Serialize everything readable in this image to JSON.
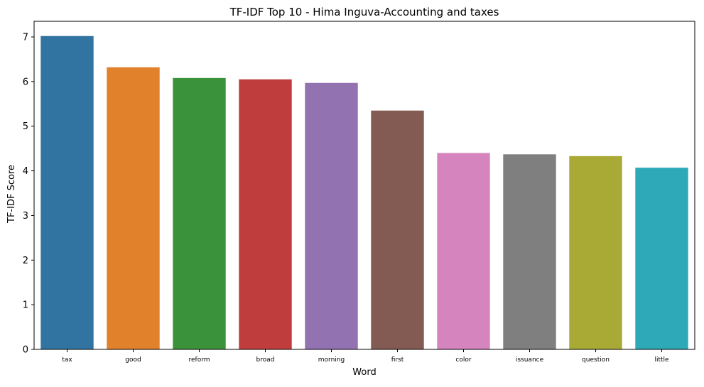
{
  "chart_data": {
    "type": "bar",
    "title": "TF-IDF Top 10 - Hima Inguva-Accounting and taxes",
    "xlabel": "Word",
    "ylabel": "TF-IDF Score",
    "categories": [
      "tax",
      "good",
      "reform",
      "broad",
      "morning",
      "first",
      "color",
      "issuance",
      "question",
      "little"
    ],
    "values": [
      7.02,
      6.32,
      6.08,
      6.05,
      5.97,
      5.35,
      4.4,
      4.37,
      4.33,
      4.07
    ],
    "colors": [
      "#3274a1",
      "#e1812c",
      "#3a923a",
      "#c03d3e",
      "#9372b2",
      "#845b53",
      "#d684bd",
      "#7f7f7f",
      "#a9aa35",
      "#2ea9b8"
    ],
    "ylim": [
      0,
      7.35
    ],
    "yticks": [
      0,
      1,
      2,
      3,
      4,
      5,
      6,
      7
    ],
    "grid": false,
    "legend": "none"
  }
}
